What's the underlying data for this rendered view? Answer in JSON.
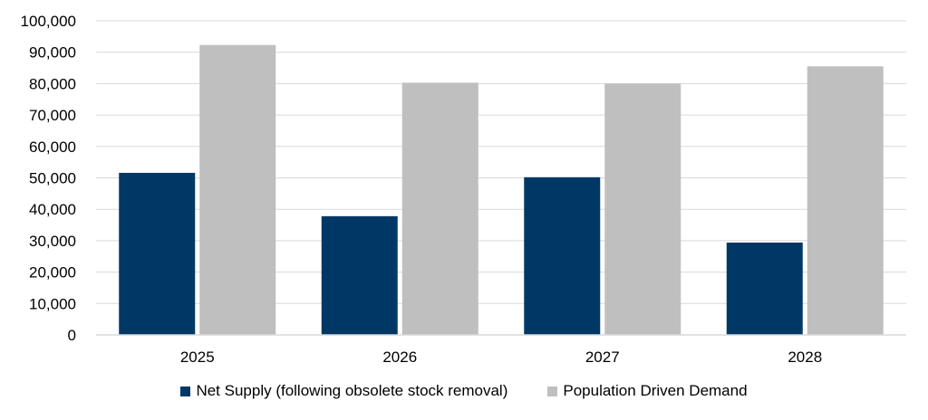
{
  "chart_data": {
    "type": "bar",
    "title": "",
    "xlabel": "",
    "ylabel": "",
    "categories": [
      "2025",
      "2026",
      "2027",
      "2028"
    ],
    "series": [
      {
        "name": "Net Supply (following obsolete stock removal)",
        "color": "#003865",
        "values": [
          51600,
          37800,
          50200,
          29400
        ]
      },
      {
        "name": "Population Driven Demand",
        "color": "#bfbfbf",
        "values": [
          92300,
          80300,
          80000,
          85500
        ]
      }
    ],
    "ylim": [
      0,
      100000
    ],
    "yticks": [
      {
        "value": 0,
        "label": "0"
      },
      {
        "value": 10000,
        "label": "10,000"
      },
      {
        "value": 20000,
        "label": "20,000"
      },
      {
        "value": 30000,
        "label": "30,000"
      },
      {
        "value": 40000,
        "label": "40,000"
      },
      {
        "value": 50000,
        "label": "50,000"
      },
      {
        "value": 60000,
        "label": "60,000"
      },
      {
        "value": 70000,
        "label": "70,000"
      },
      {
        "value": 80000,
        "label": "80,000"
      },
      {
        "value": 90000,
        "label": "90,000"
      },
      {
        "value": 100000,
        "label": "100,000"
      }
    ],
    "grid": true,
    "legend_position": "bottom"
  }
}
